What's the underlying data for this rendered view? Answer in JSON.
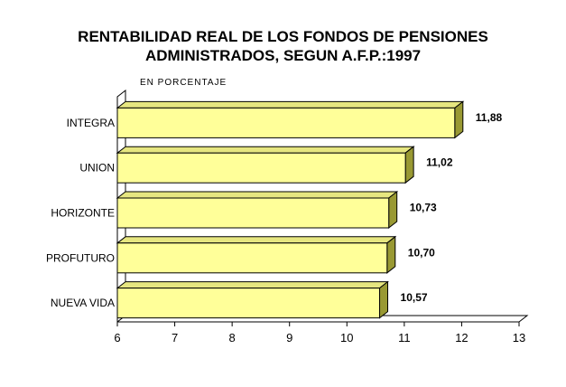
{
  "chart_data": {
    "type": "bar",
    "orientation": "horizontal",
    "title_line1": "RENTABILIDAD REAL DE LOS FONDOS DE PENSIONES",
    "title_line2": "ADMINISTRADOS, SEGUN A.F.P.:1997",
    "subtitle": "EN PORCENTAJE",
    "categories": [
      "INTEGRA",
      "UNION",
      "HORIZONTE",
      "PROFUTURO",
      "NUEVA VIDA"
    ],
    "values": [
      11.88,
      11.02,
      10.73,
      10.7,
      10.57
    ],
    "value_labels": [
      "11,88",
      "11,02",
      "10,73",
      "10,70",
      "10,57"
    ],
    "xlim": [
      6,
      13
    ],
    "xticks": [
      "6",
      "7",
      "8",
      "9",
      "10",
      "11",
      "12",
      "13"
    ],
    "bar_color": "#ffff99",
    "bar_side_color": "#999933",
    "grid": false,
    "legend": false
  }
}
